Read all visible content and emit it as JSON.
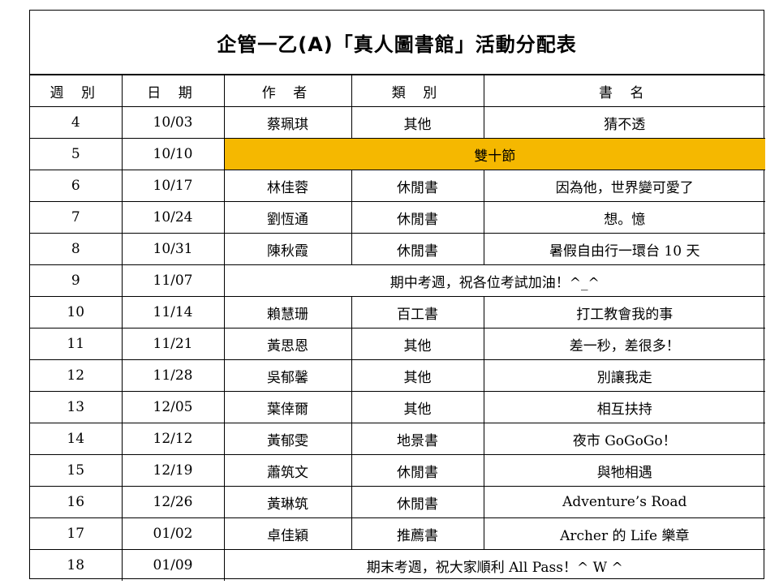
{
  "title": "企管一乙(A)「真人圖書館」活動分配表",
  "headers": {
    "week": "週 別",
    "date": "日 期",
    "author": "作 者",
    "category": "類 別",
    "book": "書 名"
  },
  "rows": [
    {
      "week": "4",
      "date": "10/03",
      "author": "蔡珮琪",
      "category": "其他",
      "book": "猜不透"
    },
    {
      "week": "5",
      "date": "10/10",
      "note": "雙十節",
      "highlight": "#f5b800"
    },
    {
      "week": "6",
      "date": "10/17",
      "author": "林佳蓉",
      "category": "休閒書",
      "book": "因為他，世界變可愛了"
    },
    {
      "week": "7",
      "date": "10/24",
      "author": "劉恆通",
      "category": "休閒書",
      "book": "想。憶"
    },
    {
      "week": "8",
      "date": "10/31",
      "author": "陳秋霞",
      "category": "休閒書",
      "book": "暑假自由行一環台 10 天"
    },
    {
      "week": "9",
      "date": "11/07",
      "note": "期中考週，祝各位考試加油！^_^"
    },
    {
      "week": "10",
      "date": "11/14",
      "author": "賴慧珊",
      "category": "百工書",
      "book": "打工教會我的事"
    },
    {
      "week": "11",
      "date": "11/21",
      "author": "黃思恩",
      "category": "其他",
      "book": "差一秒，差很多！"
    },
    {
      "week": "12",
      "date": "11/28",
      "author": "吳郁馨",
      "category": "其他",
      "book": "別讓我走"
    },
    {
      "week": "13",
      "date": "12/05",
      "author": "葉倖爾",
      "category": "其他",
      "book": "相互扶持"
    },
    {
      "week": "14",
      "date": "12/12",
      "author": "黃郁雯",
      "category": "地景書",
      "book": "夜市 GoGoGo！"
    },
    {
      "week": "15",
      "date": "12/19",
      "author": "蕭筑文",
      "category": "休閒書",
      "book": "與牠相遇"
    },
    {
      "week": "16",
      "date": "12/26",
      "author": "黃琳筑",
      "category": "休閒書",
      "book": "Adventure’s Road"
    },
    {
      "week": "17",
      "date": "01/02",
      "author": "卓佳穎",
      "category": "推薦書",
      "book": "Archer 的 Life 樂章"
    },
    {
      "week": "18",
      "date": "01/09",
      "note": "期末考週，祝大家順利 All Pass！^ W ^"
    }
  ]
}
